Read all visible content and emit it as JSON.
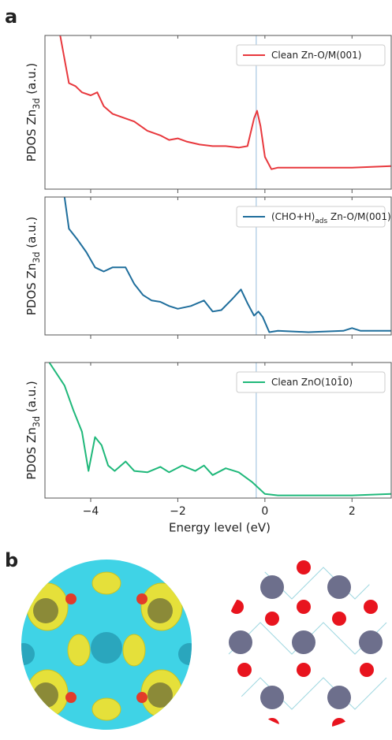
{
  "panel_labels": [
    "a",
    "b"
  ],
  "chart_data": [
    {
      "type": "line",
      "ylabel": [
        {
          "text": "PDOS  Zn"
        },
        {
          "text": "3d",
          "sub": true
        },
        {
          "text": " (a.u.)"
        }
      ],
      "xlim": [
        -5.05,
        2.9
      ],
      "ylim": [
        0,
        1
      ],
      "xticks": [
        {
          "value": -4,
          "label": "−4"
        },
        {
          "value": -2,
          "label": "−2"
        },
        0,
        2
      ],
      "vline": -0.2,
      "vline_color": "#b9d3e8",
      "legend": "upper right",
      "series": [
        {
          "name": [
            {
              "text": "Clean Zn-O/M(001)"
            }
          ],
          "color": "#e8383d",
          "x": [
            -4.7,
            -4.5,
            -4.35,
            -4.2,
            -4.0,
            -3.85,
            -3.7,
            -3.5,
            -3.2,
            -3.0,
            -2.7,
            -2.4,
            -2.2,
            -2.0,
            -1.8,
            -1.5,
            -1.2,
            -0.9,
            -0.6,
            -0.4,
            -0.25,
            -0.18,
            -0.1,
            0.0,
            0.15,
            0.3,
            1.0,
            2.0,
            2.9
          ],
          "values": [
            1.0,
            0.69,
            0.67,
            0.63,
            0.61,
            0.63,
            0.54,
            0.49,
            0.46,
            0.44,
            0.38,
            0.35,
            0.32,
            0.33,
            0.31,
            0.29,
            0.28,
            0.28,
            0.27,
            0.28,
            0.46,
            0.51,
            0.41,
            0.21,
            0.13,
            0.14,
            0.14,
            0.14,
            0.15
          ]
        }
      ]
    },
    {
      "type": "line",
      "ylabel": [
        {
          "text": "PDOS  Zn"
        },
        {
          "text": "3d",
          "sub": true
        },
        {
          "text": " (a.u.)"
        }
      ],
      "xlim": [
        -5.05,
        2.9
      ],
      "ylim": [
        0,
        1
      ],
      "xticks": [
        {
          "value": -4,
          "label": "−4"
        },
        {
          "value": -2,
          "label": "−2"
        },
        0,
        2
      ],
      "vline": -0.2,
      "vline_color": "#b9d3e8",
      "legend": "upper right",
      "series": [
        {
          "name": [
            {
              "text": "(CHO+H)"
            },
            {
              "text": "ads",
              "sub": true
            },
            {
              "text": " Zn-O/M(001)"
            }
          ],
          "color": "#1f6e9c",
          "x": [
            -4.6,
            -4.5,
            -4.3,
            -4.1,
            -3.9,
            -3.7,
            -3.5,
            -3.2,
            -3.0,
            -2.8,
            -2.6,
            -2.4,
            -2.2,
            -2.0,
            -1.7,
            -1.4,
            -1.2,
            -1.0,
            -0.75,
            -0.55,
            -0.4,
            -0.25,
            -0.15,
            -0.05,
            0.1,
            0.3,
            1.0,
            1.8,
            2.0,
            2.2,
            2.9
          ],
          "values": [
            1.0,
            0.77,
            0.69,
            0.6,
            0.49,
            0.46,
            0.49,
            0.49,
            0.37,
            0.29,
            0.25,
            0.24,
            0.21,
            0.19,
            0.21,
            0.25,
            0.17,
            0.18,
            0.26,
            0.33,
            0.23,
            0.14,
            0.17,
            0.13,
            0.02,
            0.03,
            0.02,
            0.03,
            0.05,
            0.03,
            0.03
          ]
        }
      ]
    },
    {
      "type": "line",
      "ylabel": [
        {
          "text": "PDOS  Zn"
        },
        {
          "text": "3d",
          "sub": true
        },
        {
          "text": " (a.u.)"
        }
      ],
      "xlabel": "Energy level (eV)",
      "xlim": [
        -5.05,
        2.9
      ],
      "ylim": [
        0,
        1
      ],
      "xticks": [
        {
          "value": -4,
          "label": "−4"
        },
        {
          "value": -2,
          "label": "−2"
        },
        0,
        2
      ],
      "vline": -0.2,
      "vline_color": "#b9d3e8",
      "legend": "upper right",
      "series": [
        {
          "name": [
            {
              "text": "Clean ZnO(101̄0)"
            }
          ],
          "color": "#1fb87a",
          "x": [
            -4.95,
            -4.6,
            -4.4,
            -4.2,
            -4.05,
            -3.9,
            -3.75,
            -3.6,
            -3.45,
            -3.2,
            -3.0,
            -2.7,
            -2.4,
            -2.2,
            -1.9,
            -1.6,
            -1.4,
            -1.2,
            -0.9,
            -0.6,
            -0.3,
            0.0,
            0.3,
            2.0,
            2.9
          ],
          "values": [
            1.0,
            0.83,
            0.65,
            0.49,
            0.2,
            0.45,
            0.39,
            0.24,
            0.2,
            0.27,
            0.2,
            0.19,
            0.23,
            0.19,
            0.24,
            0.2,
            0.24,
            0.17,
            0.22,
            0.19,
            0.12,
            0.03,
            0.02,
            0.02,
            0.03
          ]
        }
      ]
    }
  ]
}
